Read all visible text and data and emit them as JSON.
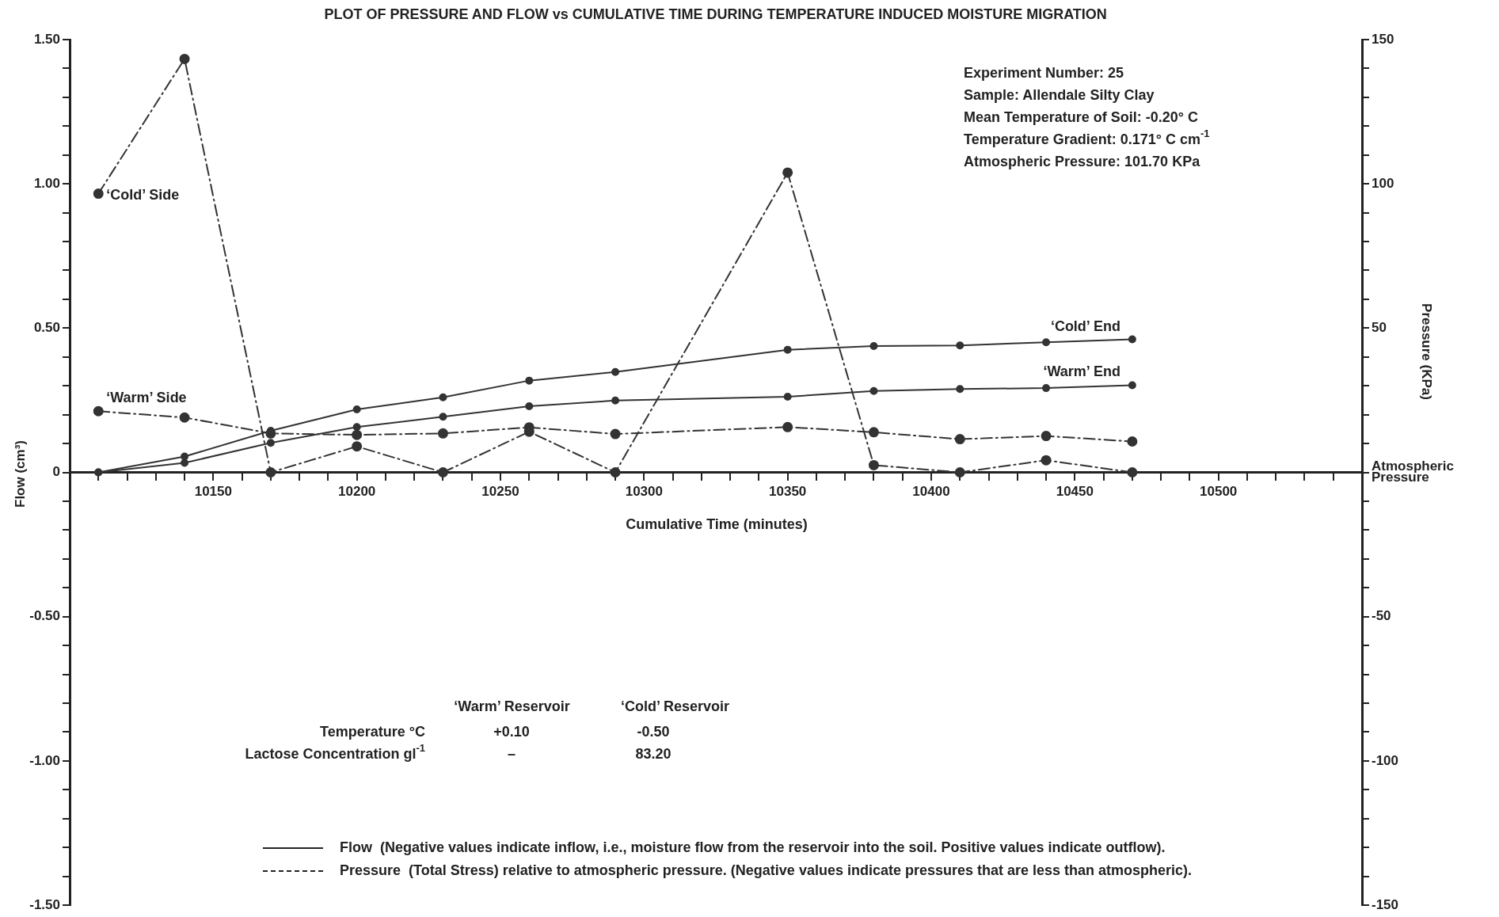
{
  "chart_data": {
    "type": "line",
    "title": "PLOT OF PRESSURE AND FLOW vs CUMULATIVE TIME DURING TEMPERATURE INDUCED MOISTURE MIGRATION",
    "xlabel": "Cumulative Time (minutes)",
    "ylabel": "Flow (cm³)",
    "y2label": "Pressure (KPa)",
    "x": [
      10110,
      10140,
      10170,
      10200,
      10230,
      10260,
      10290,
      10350,
      10380,
      10410,
      10440,
      10470
    ],
    "series": [
      {
        "name": "‘Cold’ End",
        "color": "#333333",
        "line_style": "solid",
        "values": [
          0,
          0.055,
          0.144,
          0.218,
          0.26,
          0.318,
          0.348,
          0.425,
          0.438,
          0.44,
          0.451,
          0.461
        ]
      },
      {
        "name": "‘Warm’ End",
        "color": "#333333",
        "line_style": "solid",
        "values": [
          0,
          0.033,
          0.102,
          0.157,
          0.193,
          0.229,
          0.249,
          0.262,
          0.282,
          0.289,
          0.292,
          0.302
        ]
      },
      {
        "name": "‘Cold’ Side",
        "color": "#333333",
        "line_style": "dashdot",
        "axis": "y2",
        "values": [
          96.6,
          143.3,
          0,
          9,
          0,
          14.1,
          0,
          103.9,
          2.5,
          0,
          4.2,
          0
        ]
      },
      {
        "name": "‘Warm’ Side",
        "color": "#333333",
        "line_style": "dashdot",
        "axis": "y2",
        "values": [
          21.2,
          19,
          13.5,
          13,
          13.5,
          15.6,
          13.3,
          15.7,
          13.9,
          11.5,
          12.6,
          10.7
        ]
      }
    ],
    "marker": "circle",
    "grid": false,
    "xlim": [
      10100,
      10550
    ],
    "xticks": [
      {
        "value": 10110,
        "label": null
      },
      {
        "value": 10120,
        "label": null
      },
      {
        "value": 10130,
        "label": null
      },
      {
        "value": 10140,
        "label": null
      },
      10150,
      {
        "value": 10160,
        "label": null
      },
      {
        "value": 10170,
        "label": null
      },
      {
        "value": 10180,
        "label": null
      },
      {
        "value": 10190,
        "label": null
      },
      10200,
      {
        "value": 10210,
        "label": null
      },
      {
        "value": 10220,
        "label": null
      },
      {
        "value": 10230,
        "label": null
      },
      {
        "value": 10240,
        "label": null
      },
      10250,
      {
        "value": 10260,
        "label": null
      },
      {
        "value": 10270,
        "label": null
      },
      {
        "value": 10280,
        "label": null
      },
      {
        "value": 10290,
        "label": null
      },
      10300,
      {
        "value": 10310,
        "label": null
      },
      {
        "value": 10320,
        "label": null
      },
      {
        "value": 10330,
        "label": null
      },
      {
        "value": 10340,
        "label": null
      },
      10350,
      {
        "value": 10360,
        "label": null
      },
      {
        "value": 10370,
        "label": null
      },
      {
        "value": 10380,
        "label": null
      },
      {
        "value": 10390,
        "label": null
      },
      10400,
      {
        "value": 10410,
        "label": null
      },
      {
        "value": 10420,
        "label": null
      },
      {
        "value": 10430,
        "label": null
      },
      {
        "value": 10440,
        "label": null
      },
      10450,
      {
        "value": 10460,
        "label": null
      },
      {
        "value": 10470,
        "label": null
      },
      {
        "value": 10480,
        "label": null
      },
      {
        "value": 10490,
        "label": null
      },
      10500,
      {
        "value": 10510,
        "label": null
      },
      {
        "value": 10520,
        "label": null
      },
      {
        "value": 10530,
        "label": null
      },
      {
        "value": 10540,
        "label": null
      }
    ],
    "ylim": [
      -1.5,
      1.5
    ],
    "yticks": [
      {
        "value": 1.5,
        "label": "1.50"
      },
      {
        "value": 1.4,
        "label": null
      },
      {
        "value": 1.3,
        "label": null
      },
      {
        "value": 1.2,
        "label": null
      },
      {
        "value": 1.1,
        "label": null
      },
      {
        "value": 1.0,
        "label": "1.00"
      },
      {
        "value": 0.9,
        "label": null
      },
      {
        "value": 0.8,
        "label": null
      },
      {
        "value": 0.7,
        "label": null
      },
      {
        "value": 0.6,
        "label": null
      },
      {
        "value": 0.5,
        "label": "0.50"
      },
      {
        "value": 0.4,
        "label": null
      },
      {
        "value": 0.3,
        "label": null
      },
      {
        "value": 0.2,
        "label": null
      },
      {
        "value": 0.1,
        "label": null
      },
      0,
      {
        "value": -0.1,
        "label": null
      },
      {
        "value": -0.2,
        "label": null
      },
      {
        "value": -0.3,
        "label": null
      },
      {
        "value": -0.4,
        "label": null
      },
      {
        "value": -0.5,
        "label": "-0.50"
      },
      {
        "value": -0.6,
        "label": null
      },
      {
        "value": -0.7,
        "label": null
      },
      {
        "value": -0.8,
        "label": null
      },
      {
        "value": -0.9,
        "label": null
      },
      {
        "value": -1.0,
        "label": "-1.00"
      },
      {
        "value": -1.1,
        "label": null
      },
      {
        "value": -1.2,
        "label": null
      },
      {
        "value": -1.3,
        "label": null
      },
      {
        "value": -1.4,
        "label": null
      },
      {
        "value": -1.5,
        "label": "-1.50"
      }
    ],
    "y2lim": [
      -150,
      150
    ],
    "y2ticks": [
      150,
      {
        "value": 140,
        "label": null
      },
      {
        "value": 130,
        "label": null
      },
      {
        "value": 120,
        "label": null
      },
      {
        "value": 110,
        "label": null
      },
      100,
      {
        "value": 90,
        "label": null
      },
      {
        "value": 80,
        "label": null
      },
      {
        "value": 70,
        "label": null
      },
      {
        "value": 60,
        "label": null
      },
      50,
      {
        "value": 40,
        "label": null
      },
      {
        "value": 30,
        "label": null
      },
      {
        "value": 20,
        "label": null
      },
      {
        "value": 10,
        "label": null
      },
      {
        "value": 0,
        "label": "Atmospheric Pressure"
      },
      {
        "value": -10,
        "label": null
      },
      {
        "value": -20,
        "label": null
      },
      {
        "value": -30,
        "label": null
      },
      {
        "value": -40,
        "label": null
      },
      -50,
      {
        "value": -60,
        "label": null
      },
      {
        "value": -70,
        "label": null
      },
      {
        "value": -80,
        "label": null
      },
      {
        "value": -90,
        "label": null
      },
      -100,
      {
        "value": -110,
        "label": null
      },
      {
        "value": -120,
        "label": null
      },
      {
        "value": -130,
        "label": null
      },
      {
        "value": -140,
        "label": null
      },
      -150
    ],
    "annotations": [
      "Experiment Number: 25",
      "Sample: Allendale Silty Clay",
      "Mean Temperature of Soil: -0.20° C",
      "Temperature Gradient: 0.171° C cm$^{-1}$",
      "Atmospheric Pressure: 101.70 KPa",
      "‘Warm’ Reservoir",
      "‘Cold’ Reservoir",
      "Temperature °C",
      "+0.10",
      "-0.50",
      "Lactose Concentration gl$^{-1}$",
      "–",
      "83.20",
      "Flow  (Negative values indicate inflow, i.e., moisture flow from the reservoir into the soil. Positive values indicate outflow).",
      "Pressure  (Total Stress) relative to atmospheric pressure. (Negative values indicate pressures that are less than atmospheric)."
    ]
  }
}
